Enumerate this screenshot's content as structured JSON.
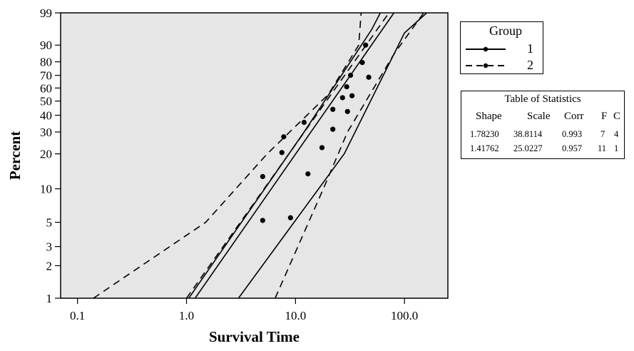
{
  "chart_data": {
    "type": "scatter",
    "title": "",
    "xlabel": "Survival Time",
    "ylabel": "Percent",
    "x_scale": "log",
    "y_scale": "weibull-probability",
    "xlim": [
      0.07,
      250
    ],
    "ylim": [
      1,
      99
    ],
    "x_ticks": [
      0.1,
      1,
      10,
      100
    ],
    "x_tick_labels": [
      "0.1",
      "1.0",
      "10.0",
      "100.0"
    ],
    "y_ticks": [
      1,
      2,
      3,
      5,
      10,
      20,
      30,
      40,
      50,
      60,
      70,
      80,
      90,
      99
    ],
    "y_tick_labels": [
      "1",
      "2",
      "3",
      "5",
      "10",
      "20",
      "30",
      "40",
      "50",
      "60",
      "70",
      "80",
      "90",
      "99"
    ],
    "background_color": "#e6e6e6",
    "legend": {
      "title": "Group",
      "placement": "right",
      "entries": [
        {
          "label": "1",
          "line_style": "solid"
        },
        {
          "label": "2",
          "line_style": "dashed"
        }
      ]
    },
    "series": [
      {
        "name": "1",
        "line_style": "solid",
        "shape": 1.7823,
        "scale": 38.8114,
        "points": [
          {
            "x": 9.0,
            "y": 5.5
          },
          {
            "x": 13.0,
            "y": 13.5
          },
          {
            "x": 17.5,
            "y": 22.5
          },
          {
            "x": 22.0,
            "y": 31.5
          },
          {
            "x": 30.0,
            "y": 42.5
          },
          {
            "x": 33.0,
            "y": 54.0
          },
          {
            "x": 41.0,
            "y": 79.5
          }
        ],
        "band_lower": [
          [
            3.0,
            1
          ],
          [
            28.0,
            20
          ],
          [
            100.0,
            95
          ],
          [
            160.0,
            99
          ]
        ],
        "band_upper": [
          [
            1.05,
            1
          ],
          [
            12.0,
            30
          ],
          [
            50.0,
            96
          ],
          [
            60.0,
            99
          ]
        ],
        "fit": [
          [
            1.2,
            1
          ],
          [
            80.0,
            99
          ]
        ]
      },
      {
        "name": "2",
        "line_style": "dashed",
        "shape": 1.41762,
        "scale": 25.0227,
        "points": [
          {
            "x": 5.0,
            "y": 5.2
          },
          {
            "x": 5.0,
            "y": 12.8
          },
          {
            "x": 7.5,
            "y": 20.5
          },
          {
            "x": 7.8,
            "y": 27.5
          },
          {
            "x": 12.0,
            "y": 35.5
          },
          {
            "x": 22.0,
            "y": 44.0
          },
          {
            "x": 27.0,
            "y": 52.5
          },
          {
            "x": 29.5,
            "y": 61.0
          },
          {
            "x": 32.0,
            "y": 70.0
          },
          {
            "x": 44.0,
            "y": 90.0
          },
          {
            "x": 47.0,
            "y": 68.5
          }
        ],
        "band_lower": [
          [
            6.5,
            1
          ],
          [
            18.0,
            10
          ],
          [
            30.0,
            30
          ],
          [
            80.0,
            85
          ],
          [
            150.0,
            99
          ]
        ],
        "band_upper": [
          [
            0.14,
            1
          ],
          [
            1.5,
            5
          ],
          [
            5.5,
            20
          ],
          [
            20.0,
            55
          ],
          [
            38.0,
            90
          ],
          [
            40.0,
            99
          ]
        ],
        "fit": [
          [
            1.0,
            1
          ],
          [
            72.0,
            99
          ]
        ]
      }
    ]
  },
  "statistics_table": {
    "title": "Table of Statistics",
    "columns": [
      "Shape",
      "Scale",
      "Corr",
      "F",
      "C"
    ],
    "rows": [
      [
        "1.78230",
        "38.8114",
        "0.993",
        "7",
        "4"
      ],
      [
        "1.41762",
        "25.0227",
        "0.957",
        "11",
        "1"
      ]
    ]
  }
}
